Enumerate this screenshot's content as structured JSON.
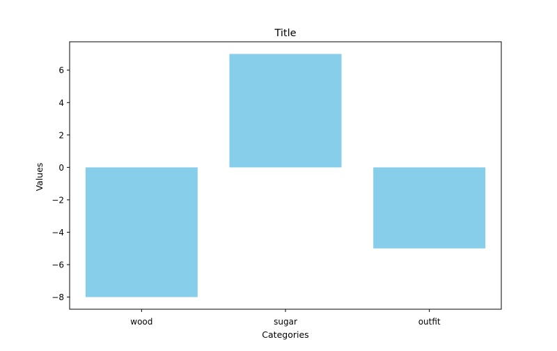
{
  "chart_data": {
    "type": "bar",
    "title": "Title",
    "xlabel": "Categories",
    "ylabel": "Values",
    "categories": [
      "wood",
      "sugar",
      "outfit"
    ],
    "values": [
      -8,
      7,
      -5
    ],
    "ylim": [
      -8.75,
      7.75
    ],
    "yticks": [
      -8,
      -6,
      -4,
      -2,
      0,
      2,
      4,
      6
    ],
    "ytick_labels": [
      "−8",
      "−6",
      "−4",
      "−2",
      "0",
      "2",
      "4",
      "6"
    ],
    "bar_color": "#87ceeb",
    "grid": false,
    "legend": "none"
  }
}
